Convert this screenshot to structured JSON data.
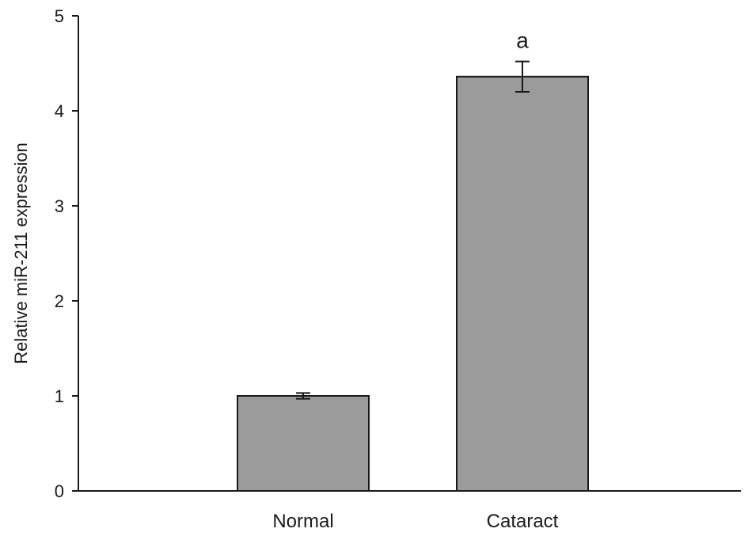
{
  "chart_data": {
    "type": "bar",
    "title": "",
    "xlabel": "",
    "ylabel": "Relative miR-211 expression",
    "categories": [
      "Normal",
      "Cataract"
    ],
    "values": [
      1.0,
      4.36
    ],
    "errors": [
      0.03,
      0.16
    ],
    "annotations": [
      "",
      "a"
    ],
    "ylim": [
      0,
      5
    ],
    "yticks": [
      0,
      1,
      2,
      3,
      4,
      5
    ],
    "grid": false,
    "legend": "none",
    "colors": {
      "bar_fill": "#9b9b9b",
      "bar_stroke": "#1a1a1a",
      "axis": "#1a1a1a"
    }
  }
}
